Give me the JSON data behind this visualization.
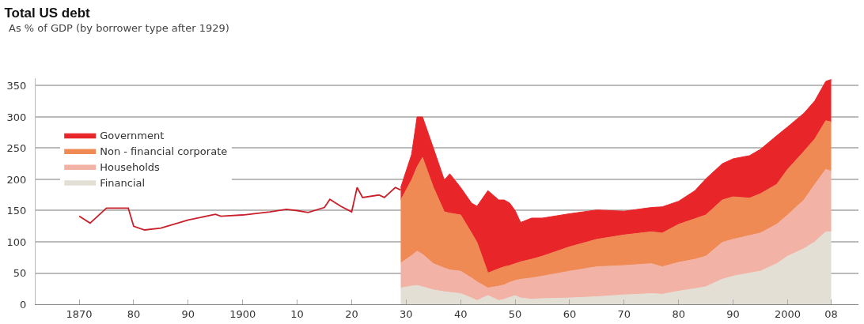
{
  "chart_data": {
    "type": "area",
    "title": "Total US debt",
    "subtitle": "As % of GDP (by borrower type after 1929)",
    "x": [
      1929,
      1931,
      1932,
      1933,
      1935,
      1937,
      1938,
      1940,
      1942,
      1943,
      1945,
      1947,
      1948,
      1949,
      1950,
      1951,
      1953,
      1955,
      1960,
      1965,
      1970,
      1975,
      1977,
      1980,
      1983,
      1985,
      1988,
      1990,
      1993,
      1995,
      1998,
      2000,
      2003,
      2005,
      2007,
      2008
    ],
    "stacked": true,
    "series": [
      {
        "name": "Financial",
        "color": "#e3dfd5",
        "values": [
          26,
          29,
          30,
          28,
          23,
          20,
          19,
          17,
          10,
          6,
          14,
          6,
          8,
          11,
          14,
          10,
          8,
          9,
          10,
          12,
          15,
          17,
          16,
          21,
          25,
          28,
          40,
          45,
          50,
          53,
          65,
          77,
          89,
          100,
          116,
          116
        ]
      },
      {
        "name": "Households",
        "color": "#f2b3a6",
        "values": [
          40,
          49,
          55,
          52,
          42,
          38,
          36,
          36,
          32,
          30,
          12,
          23,
          23,
          24,
          24,
          30,
          34,
          36,
          43,
          48,
          47,
          48,
          44,
          46,
          47,
          49,
          59,
          59,
          60,
          61,
          63,
          66,
          78,
          92,
          100,
          97
        ]
      },
      {
        "name": "Non - financial corporate",
        "color": "#ef8a55",
        "values": [
          101,
          121,
          135,
          155,
          122,
          90,
          91,
          90,
          72,
          63,
          24,
          28,
          29,
          27,
          27,
          28,
          30,
          32,
          39,
          44,
          49,
          51,
          54,
          61,
          65,
          66,
          68,
          68,
          60,
          63,
          64,
          73,
          78,
          73,
          78,
          79
        ]
      },
      {
        "name": "Government",
        "color": "#e8262a",
        "values": [
          20,
          41,
          80,
          65,
          63,
          51,
          63,
          44,
          48,
          58,
          132,
          110,
          107,
          100,
          85,
          63,
          66,
          61,
          53,
          47,
          38,
          39,
          42,
          37,
          45,
          58,
          58,
          61,
          68,
          71,
          78,
          68,
          61,
          61,
          63,
          68
        ]
      },
      {
        "type": "line",
        "color": "#c8202a",
        "x": [
          1870,
          1872,
          1875,
          1879,
          1880,
          1882,
          1885,
          1890,
          1895,
          1896,
          1900,
          1905,
          1908,
          1910,
          1912,
          1915,
          1916,
          1918,
          1920,
          1921,
          1922,
          1925,
          1926,
          1928,
          1929
        ],
        "values": [
          141,
          130,
          154,
          154,
          125,
          119,
          122,
          135,
          144,
          141,
          143,
          148,
          152,
          150,
          147,
          155,
          168,
          157,
          148,
          187,
          171,
          175,
          171,
          187,
          183
        ]
      }
    ],
    "xlim": [
      1862,
      2013
    ],
    "xticks": [
      {
        "value": 1870,
        "label": "1870"
      },
      {
        "value": 1880,
        "label": "80"
      },
      {
        "value": 1890,
        "label": "90"
      },
      {
        "value": 1900,
        "label": "1900"
      },
      {
        "value": 1910,
        "label": "10"
      },
      {
        "value": 1920,
        "label": "20"
      },
      {
        "value": 1930,
        "label": "30"
      },
      {
        "value": 1940,
        "label": "40"
      },
      {
        "value": 1950,
        "label": "50"
      },
      {
        "value": 1960,
        "label": "60"
      },
      {
        "value": 1970,
        "label": "70"
      },
      {
        "value": 1980,
        "label": "80"
      },
      {
        "value": 1990,
        "label": "90"
      },
      {
        "value": 2000,
        "label": "2000"
      },
      {
        "value": 2008,
        "label": "08"
      }
    ],
    "ylim": [
      0,
      362
    ],
    "yticks": [
      0,
      50,
      100,
      150,
      200,
      250,
      300,
      350
    ],
    "grid": "y",
    "legend": "top left"
  }
}
